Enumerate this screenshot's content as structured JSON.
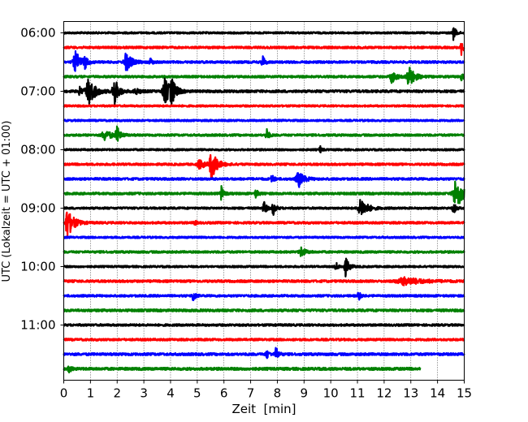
{
  "chart_data": {
    "type": "line",
    "title": "",
    "xlabel": "Zeit  [min]",
    "ylabel": "UTC (Lokalzeit = UTC + 01:00)",
    "xlim": [
      0,
      15
    ],
    "x_ticks": [
      0,
      1,
      2,
      3,
      4,
      5,
      6,
      7,
      8,
      9,
      10,
      11,
      12,
      13,
      14,
      15
    ],
    "x_tick_labels": [
      "0",
      "1",
      "2",
      "3",
      "4",
      "5",
      "6",
      "7",
      "8",
      "9",
      "10",
      "11",
      "12",
      "13",
      "14",
      "15"
    ],
    "y_tick_labels": [
      "06:00",
      "07:00",
      "08:00",
      "09:00",
      "10:00",
      "11:00"
    ],
    "y_tick_traces": [
      0,
      4,
      8,
      12,
      16,
      20
    ],
    "trace_minutes": 15,
    "grid": "vertical dotted at each minute",
    "trace_colors": [
      "#000000",
      "#ff0000",
      "#0000ff",
      "#008000"
    ],
    "series": [
      {
        "start": "06:00",
        "color": "#000000",
        "noise": 0.12,
        "end_min": 15,
        "events": [
          [
            14.6,
            0.9,
            0.06
          ]
        ]
      },
      {
        "start": "06:15",
        "color": "#ff0000",
        "noise": 0.14,
        "end_min": 15,
        "events": [
          [
            14.9,
            1.0,
            0.05
          ]
        ]
      },
      {
        "start": "06:30",
        "color": "#0000ff",
        "noise": 0.15,
        "end_min": 15,
        "events": [
          [
            0.45,
            1.4,
            0.12
          ],
          [
            0.8,
            0.7,
            0.06
          ],
          [
            2.35,
            1.3,
            0.12
          ],
          [
            3.25,
            0.5,
            0.05
          ],
          [
            7.45,
            0.9,
            0.05
          ]
        ]
      },
      {
        "start": "06:45",
        "color": "#008000",
        "noise": 0.14,
        "end_min": 15,
        "events": [
          [
            12.3,
            0.8,
            0.1
          ],
          [
            12.95,
            1.5,
            0.12
          ],
          [
            14.9,
            0.5,
            0.05
          ]
        ]
      },
      {
        "start": "07:00",
        "color": "#000000",
        "noise": 0.16,
        "end_min": 15,
        "events": [
          [
            0.95,
            1.9,
            0.15
          ],
          [
            1.9,
            1.9,
            0.1
          ],
          [
            3.8,
            1.7,
            0.12
          ],
          [
            4.05,
            1.5,
            0.1
          ],
          [
            0.6,
            0.5,
            0.07
          ],
          [
            2.7,
            0.4,
            0.1
          ]
        ]
      },
      {
        "start": "07:15",
        "color": "#ff0000",
        "noise": 0.12,
        "end_min": 15,
        "events": []
      },
      {
        "start": "07:30",
        "color": "#0000ff",
        "noise": 0.12,
        "end_min": 15,
        "events": []
      },
      {
        "start": "07:45",
        "color": "#008000",
        "noise": 0.14,
        "end_min": 15,
        "events": [
          [
            1.55,
            0.7,
            0.15
          ],
          [
            2.0,
            1.0,
            0.08
          ],
          [
            7.6,
            0.9,
            0.05
          ]
        ]
      },
      {
        "start": "08:00",
        "color": "#000000",
        "noise": 0.12,
        "end_min": 15,
        "events": [
          [
            9.6,
            0.5,
            0.04
          ]
        ]
      },
      {
        "start": "08:15",
        "color": "#ff0000",
        "noise": 0.14,
        "end_min": 15,
        "events": [
          [
            5.55,
            2.1,
            0.12
          ],
          [
            5.1,
            0.6,
            0.12
          ]
        ]
      },
      {
        "start": "08:30",
        "color": "#0000ff",
        "noise": 0.15,
        "end_min": 15,
        "events": [
          [
            7.8,
            0.6,
            0.05
          ],
          [
            8.8,
            1.1,
            0.12
          ]
        ]
      },
      {
        "start": "08:45",
        "color": "#008000",
        "noise": 0.15,
        "end_min": 15,
        "events": [
          [
            5.9,
            1.0,
            0.05
          ],
          [
            7.2,
            0.5,
            0.06
          ],
          [
            14.7,
            2.2,
            0.15
          ]
        ]
      },
      {
        "start": "09:00",
        "color": "#000000",
        "noise": 0.13,
        "end_min": 15,
        "events": [
          [
            7.5,
            0.9,
            0.06
          ],
          [
            7.85,
            0.9,
            0.06
          ],
          [
            11.15,
            1.3,
            0.15
          ],
          [
            14.6,
            0.9,
            0.05
          ]
        ]
      },
      {
        "start": "09:15",
        "color": "#ff0000",
        "noise": 0.14,
        "end_min": 15,
        "events": [
          [
            0.12,
            2.4,
            0.06
          ],
          [
            0.3,
            0.8,
            0.15
          ],
          [
            4.9,
            0.4,
            0.04
          ]
        ]
      },
      {
        "start": "09:30",
        "color": "#0000ff",
        "noise": 0.12,
        "end_min": 15,
        "events": []
      },
      {
        "start": "09:45",
        "color": "#008000",
        "noise": 0.14,
        "end_min": 15,
        "events": [
          [
            8.9,
            0.6,
            0.1
          ]
        ]
      },
      {
        "start": "10:00",
        "color": "#000000",
        "noise": 0.12,
        "end_min": 15,
        "events": [
          [
            10.55,
            1.3,
            0.08
          ],
          [
            10.2,
            0.5,
            0.06
          ]
        ]
      },
      {
        "start": "10:15",
        "color": "#ff0000",
        "noise": 0.15,
        "end_min": 15,
        "events": [
          [
            12.8,
            0.5,
            0.4
          ]
        ]
      },
      {
        "start": "10:30",
        "color": "#0000ff",
        "noise": 0.14,
        "end_min": 15,
        "events": [
          [
            4.85,
            0.9,
            0.05
          ],
          [
            11.05,
            0.6,
            0.05
          ]
        ]
      },
      {
        "start": "10:45",
        "color": "#008000",
        "noise": 0.16,
        "end_min": 15,
        "events": []
      },
      {
        "start": "11:00",
        "color": "#000000",
        "noise": 0.14,
        "end_min": 15,
        "events": []
      },
      {
        "start": "11:15",
        "color": "#ff0000",
        "noise": 0.14,
        "end_min": 15,
        "events": []
      },
      {
        "start": "11:30",
        "color": "#0000ff",
        "noise": 0.16,
        "end_min": 15,
        "events": [
          [
            7.6,
            0.6,
            0.05
          ],
          [
            7.95,
            0.9,
            0.06
          ]
        ]
      },
      {
        "start": "11:45",
        "color": "#008000",
        "noise": 0.17,
        "end_min": 13.35,
        "events": [
          [
            0.2,
            0.5,
            0.05
          ]
        ]
      }
    ]
  }
}
